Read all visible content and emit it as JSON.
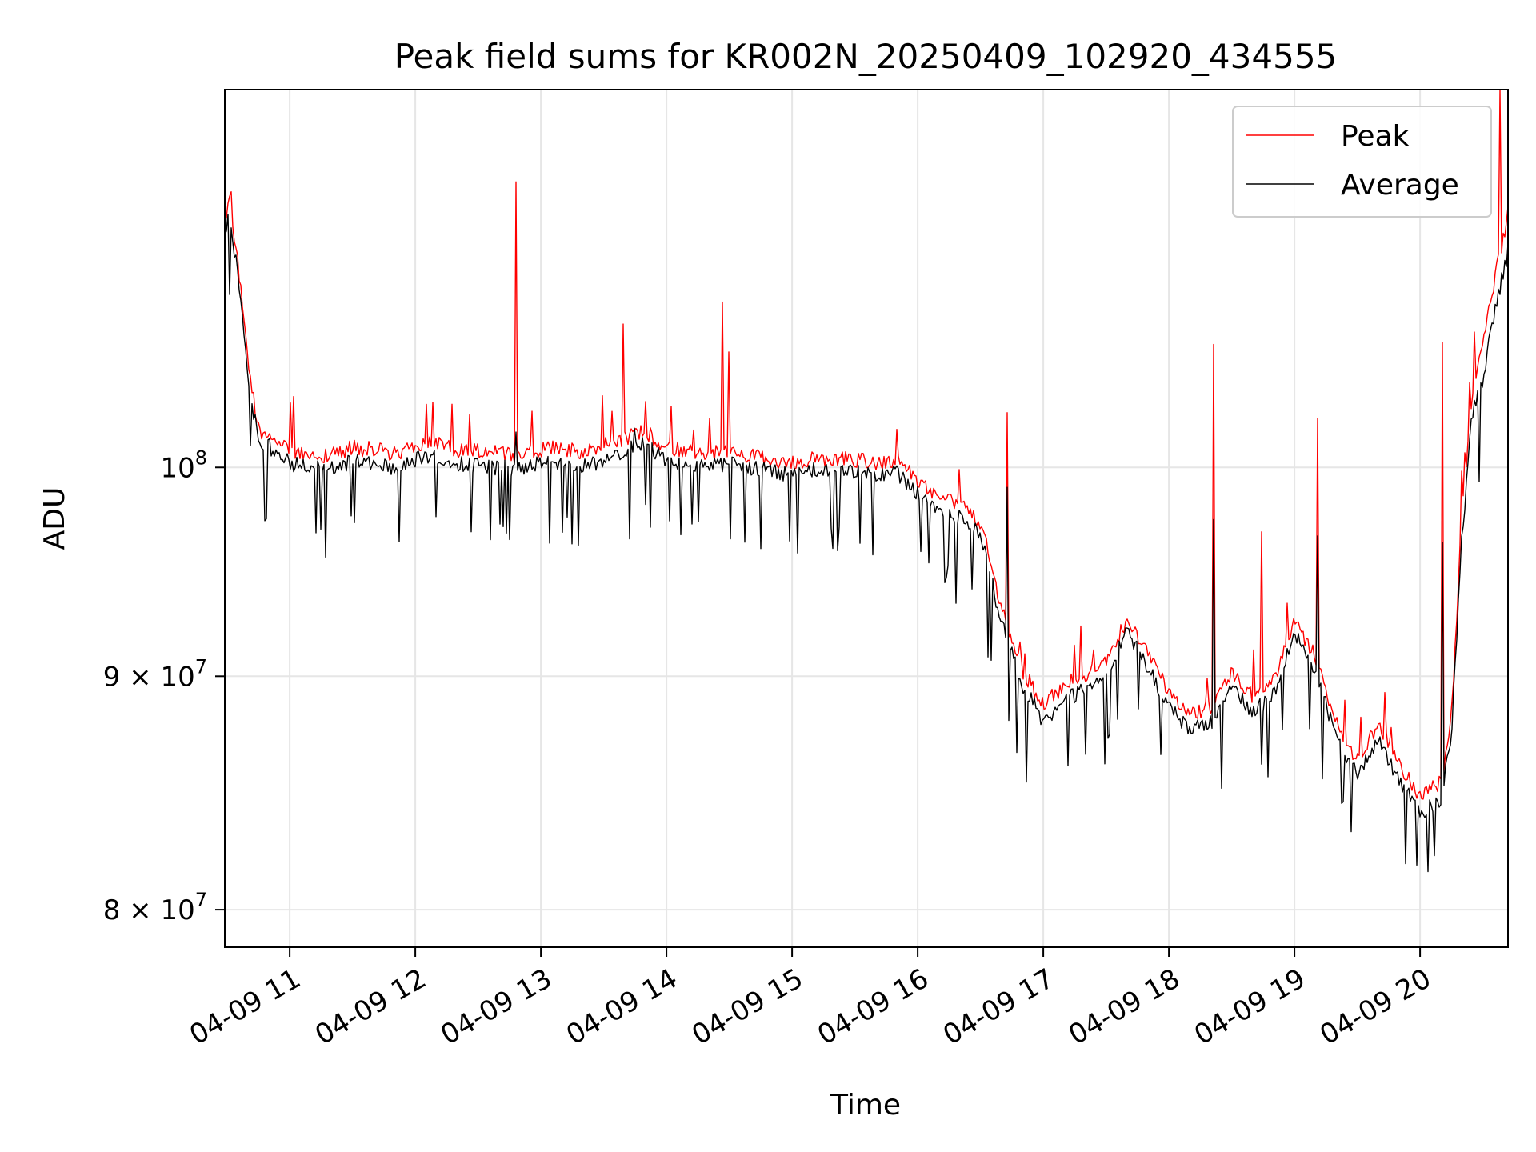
{
  "chart_data": {
    "type": "line",
    "title": "Peak field sums for KR002N_20250409_102920_434555",
    "xlabel": "Time",
    "ylabel": "ADU",
    "y_scale": "log",
    "grid": true,
    "legend_placement": "top-right",
    "xlim": [
      "2025-04-09 10:29",
      "2025-04-09 20:42"
    ],
    "ylim": [
      78500000,
      121000000
    ],
    "x_ticks": [
      {
        "t": "2025-04-09 11:00",
        "label": "04-09 11"
      },
      {
        "t": "2025-04-09 12:00",
        "label": "04-09 12"
      },
      {
        "t": "2025-04-09 13:00",
        "label": "04-09 13"
      },
      {
        "t": "2025-04-09 14:00",
        "label": "04-09 14"
      },
      {
        "t": "2025-04-09 15:00",
        "label": "04-09 15"
      },
      {
        "t": "2025-04-09 16:00",
        "label": "04-09 16"
      },
      {
        "t": "2025-04-09 17:00",
        "label": "04-09 17"
      },
      {
        "t": "2025-04-09 18:00",
        "label": "04-09 18"
      },
      {
        "t": "2025-04-09 19:00",
        "label": "04-09 19"
      },
      {
        "t": "2025-04-09 20:00",
        "label": "04-09 20"
      }
    ],
    "y_ticks": [
      {
        "v": 80000000,
        "base": "8",
        "exp": "7"
      },
      {
        "v": 90000000,
        "base": "9",
        "exp": "7"
      },
      {
        "v": 100000000,
        "base": "",
        "exp": "8"
      }
    ],
    "series": [
      {
        "name": "Peak",
        "color": "#ff0000",
        "x": [
          "2025-04-09 10:29",
          "2025-04-09 10:31",
          "2025-04-09 10:34",
          "2025-04-09 10:37",
          "2025-04-09 10:40",
          "2025-04-09 10:43",
          "2025-04-09 10:46",
          "2025-04-09 10:49",
          "2025-04-09 10:55",
          "2025-04-09 11:00",
          "2025-04-09 11:10",
          "2025-04-09 11:20",
          "2025-04-09 11:30",
          "2025-04-09 11:40",
          "2025-04-09 11:50",
          "2025-04-09 12:00",
          "2025-04-09 12:10",
          "2025-04-09 12:20",
          "2025-04-09 12:30",
          "2025-04-09 12:40",
          "2025-04-09 12:50",
          "2025-04-09 13:00",
          "2025-04-09 13:10",
          "2025-04-09 13:20",
          "2025-04-09 13:30",
          "2025-04-09 13:40",
          "2025-04-09 13:50",
          "2025-04-09 14:00",
          "2025-04-09 14:10",
          "2025-04-09 14:20",
          "2025-04-09 14:30",
          "2025-04-09 14:40",
          "2025-04-09 14:50",
          "2025-04-09 15:00",
          "2025-04-09 15:10",
          "2025-04-09 15:20",
          "2025-04-09 15:30",
          "2025-04-09 15:40",
          "2025-04-09 15:50",
          "2025-04-09 16:00",
          "2025-04-09 16:10",
          "2025-04-09 16:20",
          "2025-04-09 16:30",
          "2025-04-09 16:40",
          "2025-04-09 16:50",
          "2025-04-09 17:00",
          "2025-04-09 17:10",
          "2025-04-09 17:20",
          "2025-04-09 17:30",
          "2025-04-09 17:40",
          "2025-04-09 17:50",
          "2025-04-09 18:00",
          "2025-04-09 18:10",
          "2025-04-09 18:20",
          "2025-04-09 18:30",
          "2025-04-09 18:40",
          "2025-04-09 18:50",
          "2025-04-09 19:00",
          "2025-04-09 19:10",
          "2025-04-09 19:20",
          "2025-04-09 19:30",
          "2025-04-09 19:40",
          "2025-04-09 19:50",
          "2025-04-09 20:00",
          "2025-04-09 20:10",
          "2025-04-09 20:15",
          "2025-04-09 20:20",
          "2025-04-09 20:25",
          "2025-04-09 20:30",
          "2025-04-09 20:35",
          "2025-04-09 20:42"
        ],
        "y": [
          113000000,
          114500000,
          112000000,
          109000000,
          105500000,
          103200000,
          101500000,
          101800000,
          101200000,
          100800000,
          100600000,
          100500000,
          100900000,
          100800000,
          100600000,
          101000000,
          101200000,
          100800000,
          100700000,
          100600000,
          100500000,
          100800000,
          100900000,
          100600000,
          101000000,
          101400000,
          101700000,
          100900000,
          100700000,
          100600000,
          100700000,
          100500000,
          100300000,
          100100000,
          100400000,
          100300000,
          100300000,
          100100000,
          100200000,
          99300000,
          98500000,
          98000000,
          97200000,
          93000000,
          90200000,
          88600000,
          89500000,
          90000000,
          90600000,
          92500000,
          91000000,
          89200000,
          88200000,
          88500000,
          90100000,
          89000000,
          89700000,
          92500000,
          90800000,
          87800000,
          86200000,
          87800000,
          86000000,
          84600000,
          85200000,
          88000000,
          97500000,
          104000000,
          106500000,
          109500000,
          113500000
        ],
        "spikes": [
          {
            "x": "2025-04-09 12:48",
            "y": 115500000
          },
          {
            "x": "2025-04-09 13:39",
            "y": 107500000
          },
          {
            "x": "2025-04-09 14:27",
            "y": 108700000
          },
          {
            "x": "2025-04-09 14:30",
            "y": 106000000
          },
          {
            "x": "2025-04-09 16:43",
            "y": 102800000
          },
          {
            "x": "2025-04-09 18:21",
            "y": 106400000
          },
          {
            "x": "2025-04-09 18:44",
            "y": 96800000
          },
          {
            "x": "2025-04-09 19:11",
            "y": 102500000
          },
          {
            "x": "2025-04-09 20:11",
            "y": 106500000
          },
          {
            "x": "2025-04-09 20:38",
            "y": 121000000
          }
        ]
      },
      {
        "name": "Average",
        "color": "#000000",
        "x": [
          "2025-04-09 10:29",
          "2025-04-09 10:31",
          "2025-04-09 10:34",
          "2025-04-09 10:37",
          "2025-04-09 10:40",
          "2025-04-09 10:43",
          "2025-04-09 10:46",
          "2025-04-09 10:49",
          "2025-04-09 10:55",
          "2025-04-09 11:00",
          "2025-04-09 11:10",
          "2025-04-09 11:20",
          "2025-04-09 11:30",
          "2025-04-09 11:40",
          "2025-04-09 11:50",
          "2025-04-09 12:00",
          "2025-04-09 12:10",
          "2025-04-09 12:20",
          "2025-04-09 12:30",
          "2025-04-09 12:40",
          "2025-04-09 12:50",
          "2025-04-09 13:00",
          "2025-04-09 13:10",
          "2025-04-09 13:20",
          "2025-04-09 13:30",
          "2025-04-09 13:40",
          "2025-04-09 13:50",
          "2025-04-09 14:00",
          "2025-04-09 14:10",
          "2025-04-09 14:20",
          "2025-04-09 14:30",
          "2025-04-09 14:40",
          "2025-04-09 14:50",
          "2025-04-09 15:00",
          "2025-04-09 15:10",
          "2025-04-09 15:20",
          "2025-04-09 15:30",
          "2025-04-09 15:40",
          "2025-04-09 15:50",
          "2025-04-09 16:00",
          "2025-04-09 16:10",
          "2025-04-09 16:20",
          "2025-04-09 16:30",
          "2025-04-09 16:40",
          "2025-04-09 16:50",
          "2025-04-09 17:00",
          "2025-04-09 17:10",
          "2025-04-09 17:20",
          "2025-04-09 17:30",
          "2025-04-09 17:40",
          "2025-04-09 17:50",
          "2025-04-09 18:00",
          "2025-04-09 18:10",
          "2025-04-09 18:20",
          "2025-04-09 18:30",
          "2025-04-09 18:40",
          "2025-04-09 18:50",
          "2025-04-09 19:00",
          "2025-04-09 19:10",
          "2025-04-09 19:20",
          "2025-04-09 19:30",
          "2025-04-09 19:40",
          "2025-04-09 19:50",
          "2025-04-09 20:00",
          "2025-04-09 20:10",
          "2025-04-09 20:15",
          "2025-04-09 20:20",
          "2025-04-09 20:25",
          "2025-04-09 20:30",
          "2025-04-09 20:35",
          "2025-04-09 20:42"
        ],
        "y": [
          112500000,
          113500000,
          111300000,
          108300000,
          104800000,
          102600000,
          101000000,
          101200000,
          100600000,
          100200000,
          100000000,
          99900000,
          100300000,
          100200000,
          100000000,
          100400000,
          100600000,
          100200000,
          100100000,
          100000000,
          99900000,
          100200000,
          100300000,
          100000000,
          100400000,
          100900000,
          101200000,
          100400000,
          100200000,
          100100000,
          100200000,
          100000000,
          99800000,
          99600000,
          99900000,
          99800000,
          99800000,
          99600000,
          99700000,
          98700000,
          97900000,
          97500000,
          96700000,
          92400000,
          89600000,
          88000000,
          88900000,
          89400000,
          90100000,
          92000000,
          90400000,
          88600000,
          87600000,
          87900000,
          89500000,
          88400000,
          89100000,
          92000000,
          90200000,
          87200000,
          85600000,
          87200000,
          85400000,
          84000000,
          84600000,
          87400000,
          96500000,
          102800000,
          104500000,
          107800000,
          111500000
        ],
        "spikes": [
          {
            "x": "2025-04-09 12:48",
            "y": 101800000
          },
          {
            "x": "2025-04-09 13:45",
            "y": 102000000
          },
          {
            "x": "2025-04-09 16:43",
            "y": 99000000
          },
          {
            "x": "2025-04-09 18:21",
            "y": 97400000
          },
          {
            "x": "2025-04-09 19:11",
            "y": 96600000
          },
          {
            "x": "2025-04-09 20:11",
            "y": 96300000
          }
        ]
      }
    ]
  }
}
